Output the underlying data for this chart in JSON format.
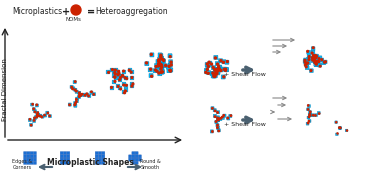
{
  "title_parts": [
    "Microplastics",
    "+",
    "NOMs",
    "=",
    "Heteroaggregation"
  ],
  "ylabel": "Fractal Dimension",
  "xlabel_bottom": "Microplastic Shapes",
  "label_left": "Edges &\nCorners",
  "label_right": "Round &\nSmooth",
  "shear_flow_label": "+ Shear Flow",
  "bg_color": "#ffffff",
  "cyan_color": "#00BFFF",
  "red_color": "#CC2200",
  "blue_color": "#1a6fd4",
  "dark_arrow_color": "#4a6070",
  "gray_arrow_color": "#888888",
  "text_color": "#222222"
}
